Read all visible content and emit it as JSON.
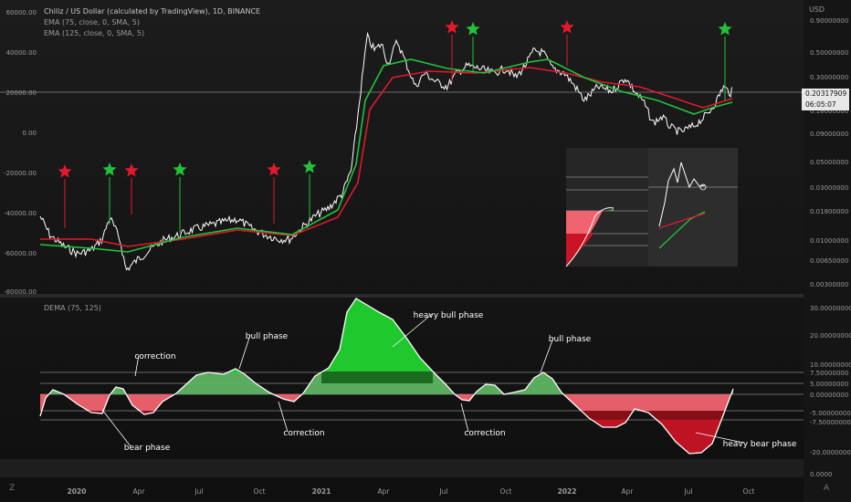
{
  "header": {
    "title": "Chiliz / US Dollar (calculated by TradingView), 1D, BINANCE",
    "ema1": "EMA (75, close, 0, SMA, 5)",
    "ema2": "EMA (125, close, 0, SMA, 5)",
    "currency": "USD"
  },
  "colors": {
    "bull": "#22c33a",
    "bear": "#e0192c",
    "price": "#ffffff",
    "bg": "#131313"
  },
  "chart_data": [
    {
      "type": "line",
      "title": "Chiliz / US Dollar (calculated by TradingView), 1D, BINANCE",
      "left_axis": [
        "60000.00",
        "40000.00",
        "20000.00",
        "0.00",
        "-20000.00",
        "-40000.00",
        "-60000.00",
        "-80000.00"
      ],
      "right_axis": [
        "0.90000000",
        "0.50000000",
        "0.30000000",
        "0.16000000",
        "0.09000000",
        "0.05000000",
        "0.03000000",
        "0.01800000",
        "0.01000000",
        "0.00650000",
        "0.00300000"
      ],
      "price_label": "0.20317909",
      "countdown": "06:05:07",
      "series": [
        {
          "name": "EMA (75, close, 0, SMA, 5)",
          "color": "#22c33a"
        },
        {
          "name": "EMA (125, close, 0, SMA, 5)",
          "color": "#e0192c"
        }
      ],
      "markers": [
        {
          "date": "2019-12",
          "type": "sell"
        },
        {
          "date": "2020-03",
          "type": "buy"
        },
        {
          "date": "2020-03",
          "type": "sell"
        },
        {
          "date": "2020-06",
          "type": "buy"
        },
        {
          "date": "2020-10",
          "type": "sell"
        },
        {
          "date": "2020-11",
          "type": "buy"
        },
        {
          "date": "2021-07",
          "type": "sell"
        },
        {
          "date": "2021-07",
          "type": "buy"
        },
        {
          "date": "2021-12",
          "type": "sell"
        },
        {
          "date": "2022-09",
          "type": "buy"
        }
      ]
    },
    {
      "type": "area",
      "title": "DEMA (75, 125)",
      "right_axis": [
        "30.00000000",
        "20.00000000",
        "10.00000000",
        "7.50000000",
        "5.00000000",
        "0.00000000",
        "-5.00000000",
        "-7.50000000",
        "-20.00000000",
        "0.0000"
      ],
      "levels": [
        7.5,
        5,
        0,
        -5,
        -7.5
      ],
      "annotations": [
        "correction",
        "bull phase",
        "heavy bull phase",
        "bull phase",
        "bear phase",
        "correction",
        "correction",
        "heavy bear phase"
      ]
    }
  ],
  "x_axis": [
    "2020",
    "Apr",
    "Jul",
    "Oct",
    "2021",
    "Apr",
    "Jul",
    "Oct",
    "2022",
    "Apr",
    "Jul",
    "Oct"
  ],
  "corners": {
    "left": "Z",
    "right": "A"
  }
}
